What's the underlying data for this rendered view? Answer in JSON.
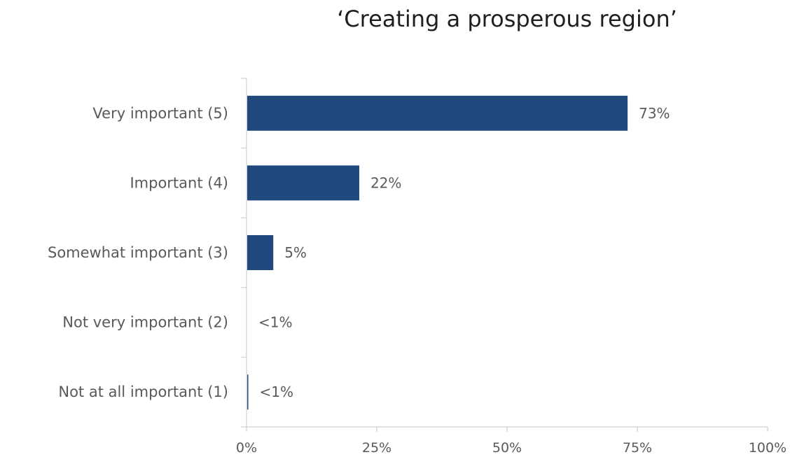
{
  "chart_data": {
    "type": "bar",
    "orientation": "horizontal",
    "title": "‘Creating a prosperous region’",
    "categories": [
      "Very important (5)",
      "Important (4)",
      "Somewhat important (3)",
      "Not very important (2)",
      "Not at all important (1)"
    ],
    "values": [
      73,
      21.5,
      5,
      0,
      0.2
    ],
    "data_labels": [
      "73%",
      "22%",
      "5%",
      "<1%",
      "<1%"
    ],
    "x_ticks": [
      "0%",
      "25%",
      "50%",
      "75%",
      "100%"
    ],
    "xlim": [
      0,
      100
    ],
    "xlabel": "",
    "ylabel": "",
    "grid": false,
    "legend": "none",
    "bar_color": "#1f497d",
    "axis_color": "#d9d9d9",
    "text_color": "#595959"
  }
}
